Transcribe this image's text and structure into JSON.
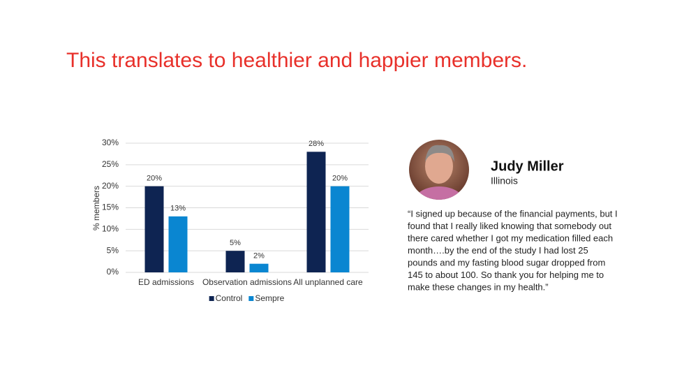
{
  "headline": "This translates to healthier and happier members.",
  "chart_data": {
    "type": "bar",
    "y_label": "% members",
    "categories": [
      "ED admissions",
      "Observation admissions",
      "All unplanned care"
    ],
    "series": [
      {
        "name": "Control",
        "color": "#0e2452",
        "values": [
          20,
          5,
          28
        ],
        "value_labels": [
          "20%",
          "5%",
          "28%"
        ]
      },
      {
        "name": "Sempre",
        "color": "#0a86d1",
        "values": [
          13,
          2,
          20
        ],
        "value_labels": [
          "13%",
          "2%",
          "20%"
        ]
      }
    ],
    "ylim": [
      0,
      30
    ],
    "yticks": [
      {
        "value": 0,
        "label": "0%"
      },
      {
        "value": 5,
        "label": "5%"
      },
      {
        "value": 10,
        "label": "10%"
      },
      {
        "value": 15,
        "label": "15%"
      },
      {
        "value": 20,
        "label": "20%"
      },
      {
        "value": 25,
        "label": "25%"
      },
      {
        "value": 30,
        "label": "30%"
      }
    ],
    "grid": true,
    "legend": "bottom"
  },
  "testimonial": {
    "name": "Judy Miller",
    "location": "Illinois",
    "quote_lines": [
      "“I signed up because of the financial payments, but I",
      "found that I really liked knowing that somebody out",
      "there cared whether I got my medication filled each",
      "month….by the end of the study I had lost 25",
      "pounds and my fasting blood sugar dropped from",
      "145 to about 100. So thank you for helping me to",
      "make these changes in my health.”"
    ]
  }
}
